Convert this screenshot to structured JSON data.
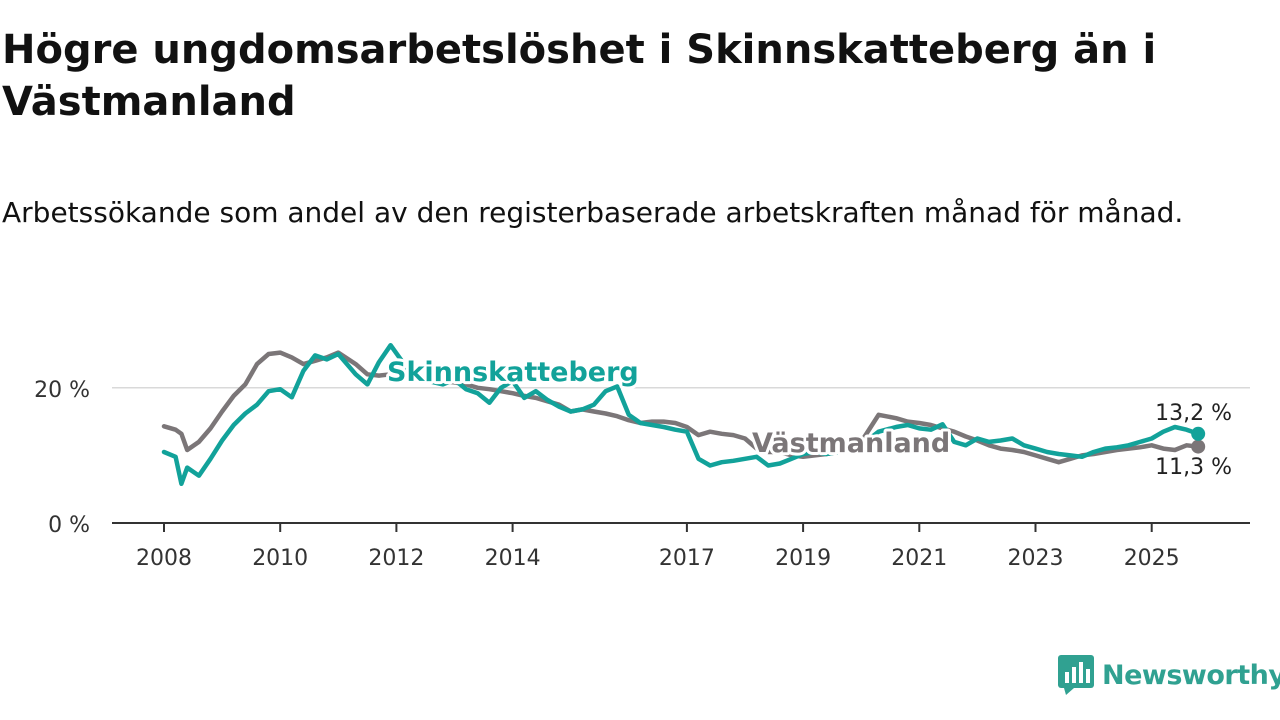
{
  "title": "Högre ungdomsarbetslöshet i Skinnskatteberg än i Västmanland",
  "subtitle": "Arbetssökande som andel av den registerbaserade arbetskraften månad för månad.",
  "brand": {
    "name": "Newsworthy",
    "icon": "bar-chart-logo-icon"
  },
  "colors": {
    "skinnskatteberg": "#12a29a",
    "vastmanland": "#7b7678",
    "axis": "#333333",
    "grid": "#d9d9d9"
  },
  "chart_data": {
    "type": "line",
    "xlabel": "",
    "ylabel": "",
    "xlim": [
      2008,
      2026.2
    ],
    "ylim": [
      0,
      25
    ],
    "y_ticks": [
      {
        "value": 0,
        "label": "0 %"
      },
      {
        "value": 20,
        "label": "20 %"
      }
    ],
    "x_ticks": [
      2008,
      2010,
      2012,
      2014,
      2017,
      2019,
      2021,
      2023,
      2025
    ],
    "annotations": {
      "last_skinnskatteberg": "13,2 %",
      "last_vastmanland": "11,3 %"
    },
    "series": [
      {
        "name": "Skinnskatteberg",
        "color": "#12a29a",
        "x": [
          2008.0,
          2008.2,
          2008.3,
          2008.4,
          2008.6,
          2008.8,
          2009.0,
          2009.2,
          2009.4,
          2009.6,
          2009.8,
          2010.0,
          2010.2,
          2010.4,
          2010.6,
          2010.8,
          2011.0,
          2011.3,
          2011.5,
          2011.7,
          2011.9,
          2012.3,
          2012.8,
          2013.0,
          2013.2,
          2013.4,
          2013.6,
          2013.8,
          2014.0,
          2014.2,
          2014.4,
          2014.6,
          2014.8,
          2015.0,
          2015.2,
          2015.4,
          2015.6,
          2015.8,
          2016.0,
          2016.2,
          2016.4,
          2016.6,
          2016.8,
          2017.0,
          2017.2,
          2017.4,
          2017.6,
          2017.8,
          2018.0,
          2018.2,
          2018.4,
          2018.6,
          2018.8,
          2019.0,
          2019.2,
          2019.4,
          2019.6,
          2019.8,
          2020.0,
          2020.3,
          2020.6,
          2020.8,
          2021.0,
          2021.2,
          2021.4,
          2021.6,
          2021.8,
          2022.0,
          2022.2,
          2022.4,
          2022.6,
          2022.8,
          2023.0,
          2023.2,
          2023.4,
          2023.6,
          2023.8,
          2024.0,
          2024.2,
          2024.4,
          2024.6,
          2024.8,
          2025.0,
          2025.2,
          2025.4,
          2025.6,
          2025.8
        ],
        "values": [
          10.5,
          9.8,
          5.8,
          8.2,
          7.0,
          9.5,
          12.2,
          14.5,
          16.2,
          17.5,
          19.5,
          19.8,
          18.6,
          22.5,
          24.8,
          24.2,
          25.0,
          22.0,
          20.5,
          23.8,
          26.3,
          21.5,
          20.5,
          21.2,
          19.8,
          19.2,
          17.8,
          20.0,
          21.0,
          18.5,
          19.5,
          18.2,
          17.2,
          16.5,
          16.8,
          17.5,
          19.5,
          20.2,
          16.0,
          14.8,
          14.5,
          14.2,
          13.8,
          13.5,
          9.5,
          8.5,
          9.0,
          9.2,
          9.5,
          9.8,
          8.5,
          8.8,
          9.5,
          10.2,
          10.5,
          10.2,
          10.5,
          11.0,
          11.5,
          13.5,
          14.2,
          14.5,
          14.0,
          13.8,
          14.6,
          12.0,
          11.5,
          12.5,
          12.0,
          12.2,
          12.5,
          11.5,
          11.0,
          10.5,
          10.2,
          10.0,
          9.8,
          10.5,
          11.0,
          11.2,
          11.5,
          12.0,
          12.5,
          13.5,
          14.2,
          13.8,
          13.2
        ]
      },
      {
        "name": "Västmanland",
        "color": "#7b7678",
        "x": [
          2008.0,
          2008.2,
          2008.3,
          2008.4,
          2008.6,
          2008.8,
          2009.0,
          2009.2,
          2009.4,
          2009.6,
          2009.8,
          2010.0,
          2010.2,
          2010.4,
          2010.6,
          2010.8,
          2011.0,
          2011.3,
          2011.5,
          2011.7,
          2011.9,
          2012.3,
          2012.8,
          2013.0,
          2013.2,
          2013.4,
          2013.6,
          2013.8,
          2014.0,
          2014.2,
          2014.4,
          2014.6,
          2014.8,
          2015.0,
          2015.2,
          2015.4,
          2015.6,
          2015.8,
          2016.0,
          2016.2,
          2016.4,
          2016.6,
          2016.8,
          2017.0,
          2017.2,
          2017.4,
          2017.6,
          2017.8,
          2018.0,
          2018.2,
          2018.4,
          2018.6,
          2018.8,
          2019.0,
          2019.2,
          2019.4,
          2019.6,
          2019.8,
          2020.0,
          2020.3,
          2020.6,
          2020.8,
          2021.0,
          2021.2,
          2021.4,
          2021.6,
          2021.8,
          2022.0,
          2022.2,
          2022.4,
          2022.6,
          2022.8,
          2023.0,
          2023.2,
          2023.4,
          2023.6,
          2023.8,
          2024.0,
          2024.2,
          2024.4,
          2024.6,
          2024.8,
          2025.0,
          2025.2,
          2025.4,
          2025.6,
          2025.8
        ],
        "values": [
          14.3,
          13.8,
          13.2,
          10.8,
          12.0,
          14.0,
          16.5,
          18.8,
          20.5,
          23.5,
          25.0,
          25.2,
          24.5,
          23.5,
          24.0,
          24.5,
          25.2,
          23.5,
          22.0,
          21.8,
          22.0,
          21.5,
          21.0,
          20.8,
          20.5,
          20.0,
          19.8,
          19.5,
          19.2,
          18.8,
          18.5,
          18.0,
          17.5,
          16.5,
          16.8,
          16.5,
          16.2,
          15.8,
          15.2,
          14.8,
          15.0,
          15.0,
          14.8,
          14.2,
          13.0,
          13.5,
          13.2,
          13.0,
          12.5,
          11.0,
          10.5,
          10.5,
          10.0,
          9.8,
          10.0,
          10.2,
          10.5,
          11.0,
          12.0,
          16.0,
          15.5,
          15.0,
          14.8,
          14.5,
          14.0,
          13.5,
          12.8,
          12.2,
          11.5,
          11.0,
          10.8,
          10.5,
          10.0,
          9.5,
          9.0,
          9.5,
          10.0,
          10.2,
          10.5,
          10.8,
          11.0,
          11.2,
          11.5,
          11.0,
          10.8,
          11.5,
          11.3
        ]
      }
    ]
  }
}
